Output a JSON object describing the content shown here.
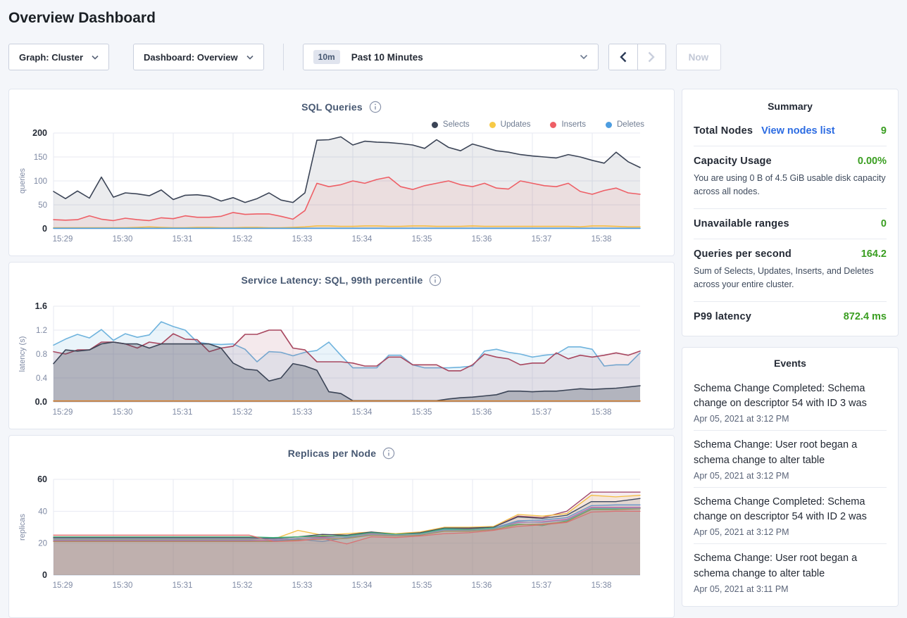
{
  "page": {
    "title": "Overview Dashboard"
  },
  "toolbar": {
    "graph_dropdown": {
      "label": "Graph: Cluster"
    },
    "dashboard_dropdown": {
      "label": "Dashboard: Overview"
    },
    "time_selector": {
      "badge": "10m",
      "label": "Past 10 Minutes"
    },
    "now_label": "Now"
  },
  "summary": {
    "title": "Summary",
    "rows": [
      {
        "label": "Total Nodes",
        "link": "View nodes list",
        "value": "9"
      },
      {
        "label": "Capacity Usage",
        "value": "0.00%",
        "description": "You are using 0 B of 4.5 GiB usable disk capacity across all nodes."
      },
      {
        "label": "Unavailable ranges",
        "value": "0"
      },
      {
        "label": "Queries per second",
        "value": "164.2",
        "description": "Sum of Selects, Updates, Inserts, and Deletes across your entire cluster."
      },
      {
        "label": "P99 latency",
        "value": "872.4 ms"
      }
    ]
  },
  "events": {
    "title": "Events",
    "items": [
      {
        "text": "Schema Change Completed: Schema change on descriptor 54 with ID 3 was",
        "timestamp": "Apr 05, 2021 at 3:12 PM"
      },
      {
        "text": "Schema Change: User root began a schema change to alter table",
        "timestamp": "Apr 05, 2021 at 3:12 PM"
      },
      {
        "text": "Schema Change Completed: Schema change on descriptor 54 with ID 2 was",
        "timestamp": "Apr 05, 2021 at 3:12 PM"
      },
      {
        "text": "Schema Change: User root began a schema change to alter table",
        "timestamp": "Apr 05, 2021 at 3:11 PM"
      }
    ]
  },
  "colors": {
    "value_green": "#3a9e21",
    "link_blue": "#2b6be2",
    "selects_navy": "#3b4456",
    "updates_yellow": "#f7ca46",
    "inserts_red": "#ee5f66",
    "deletes_blue": "#4d9de0"
  },
  "chart_data": [
    {
      "id": "sql-queries",
      "type": "area",
      "title": "SQL Queries",
      "ylabel": "queries",
      "ylim": [
        0,
        200
      ],
      "yticks": [
        0,
        50,
        100,
        150,
        200
      ],
      "ytick_labels": [
        "0",
        "50",
        "100",
        "150",
        "200"
      ],
      "xticks": [
        "15:29",
        "15:30",
        "15:31",
        "15:32",
        "15:33",
        "15:34",
        "15:35",
        "15:36",
        "15:37",
        "15:38"
      ],
      "x_range_minutes": 9.8,
      "grid": true,
      "legend": true,
      "legend_position": "top-right",
      "stroke_width": 1.6,
      "series": [
        {
          "name": "Selects",
          "color": "#3b4456",
          "fill": "rgba(59,68,86,0.10)",
          "values": [
            78,
            63,
            79,
            64,
            108,
            66,
            75,
            73,
            69,
            81,
            61,
            70,
            71,
            68,
            58,
            65,
            55,
            63,
            75,
            60,
            55,
            75,
            185,
            186,
            192,
            175,
            183,
            181,
            180,
            178,
            175,
            168,
            186,
            170,
            163,
            177,
            170,
            163,
            160,
            155,
            152,
            150,
            148,
            155,
            150,
            143,
            137,
            160,
            140,
            128
          ]
        },
        {
          "name": "Updates",
          "color": "#f7ca46",
          "fill": "rgba(247,202,70,0.12)",
          "values": [
            2,
            2,
            2,
            2,
            2,
            2,
            2,
            3,
            4,
            3,
            2,
            2,
            3,
            3,
            2,
            2,
            3,
            3,
            2,
            2,
            3,
            4,
            6,
            6,
            5,
            5,
            6,
            6,
            5,
            5,
            6,
            6,
            5,
            5,
            5,
            6,
            5,
            5,
            5,
            5,
            5,
            5,
            5,
            5,
            4,
            6,
            6,
            5,
            4,
            4
          ]
        },
        {
          "name": "Inserts",
          "color": "#ee5f66",
          "fill": "rgba(238,95,102,0.10)",
          "values": [
            19,
            18,
            19,
            27,
            20,
            17,
            22,
            19,
            17,
            23,
            21,
            27,
            24,
            24,
            26,
            34,
            30,
            31,
            31,
            26,
            20,
            38,
            95,
            88,
            92,
            100,
            95,
            103,
            108,
            88,
            82,
            90,
            95,
            100,
            92,
            88,
            95,
            85,
            83,
            100,
            95,
            90,
            88,
            95,
            78,
            72,
            80,
            85,
            75,
            72
          ]
        },
        {
          "name": "Deletes",
          "color": "#4d9de0",
          "fill": "rgba(77,157,224,0.12)",
          "values": [
            1,
            1
          ]
        }
      ]
    },
    {
      "id": "service-latency",
      "type": "area",
      "title": "Service Latency: SQL, 99th percentile",
      "ylabel": "latency (s)",
      "ylim": [
        0,
        1.6
      ],
      "yticks": [
        0,
        0.4,
        0.8,
        1.2,
        1.6
      ],
      "ytick_labels": [
        "0.0",
        "0.4",
        "0.8",
        "1.2",
        "1.6"
      ],
      "xticks": [
        "15:29",
        "15:30",
        "15:31",
        "15:32",
        "15:33",
        "15:34",
        "15:35",
        "15:36",
        "15:37",
        "15:38"
      ],
      "x_range_minutes": 9.8,
      "grid": true,
      "legend": false,
      "stroke_width": 1.6,
      "series": [
        {
          "color": "#6fb3dd",
          "fill": "rgba(111,179,221,0.15)",
          "values": [
            0.95,
            1.05,
            1.13,
            1.07,
            1.21,
            1.03,
            1.14,
            1.08,
            1.12,
            1.34,
            1.26,
            1.2,
            1.0,
            0.97,
            0.96,
            0.97,
            0.88,
            0.67,
            0.84,
            0.83,
            0.77,
            0.83,
            0.86,
            1.0,
            0.78,
            0.57,
            0.57,
            0.57,
            0.78,
            0.78,
            0.62,
            0.57,
            0.57,
            0.57,
            0.58,
            0.6,
            0.85,
            0.88,
            0.83,
            0.8,
            0.75,
            0.78,
            0.8,
            0.92,
            0.92,
            0.88,
            0.6,
            0.62,
            0.62,
            0.82
          ]
        },
        {
          "color": "#a8475f",
          "fill": "rgba(168,71,95,0.12)",
          "values": [
            0.84,
            0.8,
            0.87,
            0.87,
            1.0,
            1.0,
            0.97,
            0.9,
            1.0,
            0.97,
            1.14,
            1.05,
            1.04,
            0.84,
            0.9,
            0.93,
            1.13,
            1.13,
            1.2,
            1.2,
            0.9,
            0.87,
            0.67,
            0.67,
            0.67,
            0.65,
            0.6,
            0.6,
            0.75,
            0.75,
            0.62,
            0.62,
            0.62,
            0.52,
            0.52,
            0.62,
            0.8,
            0.75,
            0.72,
            0.62,
            0.65,
            0.65,
            0.82,
            0.72,
            0.78,
            0.75,
            0.78,
            0.82,
            0.78,
            0.85
          ]
        },
        {
          "color": "#3b4456",
          "fill": "rgba(59,68,86,0.28)",
          "values": [
            0.64,
            0.87,
            0.85,
            0.87,
            0.97,
            1.0,
            0.97,
            0.97,
            0.9,
            0.97,
            0.97,
            0.97,
            0.97,
            0.97,
            0.9,
            0.65,
            0.55,
            0.53,
            0.35,
            0.4,
            0.64,
            0.6,
            0.53,
            0.17,
            0.14,
            0.02,
            0.02,
            0.02,
            0.02,
            0.02,
            0.02,
            0.02,
            0.02,
            0.05,
            0.07,
            0.08,
            0.1,
            0.12,
            0.18,
            0.18,
            0.17,
            0.18,
            0.18,
            0.2,
            0.22,
            0.21,
            0.22,
            0.23,
            0.25,
            0.27
          ]
        },
        {
          "color": "#d9822b",
          "fill": "none",
          "values": [
            0.015,
            0.015
          ]
        }
      ]
    },
    {
      "id": "replicas-per-node",
      "type": "area",
      "title": "Replicas per Node",
      "ylabel": "replicas",
      "ylim": [
        0,
        60
      ],
      "yticks": [
        0,
        20,
        40,
        60
      ],
      "ytick_labels": [
        "0",
        "20",
        "40",
        "60"
      ],
      "xticks": [
        "15:29",
        "15:30",
        "15:31",
        "15:32",
        "15:33",
        "15:34",
        "15:35",
        "15:36",
        "15:37",
        "15:38"
      ],
      "x_range_minutes": 9.8,
      "grid": true,
      "legend": false,
      "stroke_width": 1.3,
      "series": [
        {
          "color": "#9b3e63",
          "fill": "rgba(155,62,99,0.10)",
          "values": [
            23,
            23,
            23,
            23,
            23,
            23,
            23,
            23,
            23,
            23,
            24,
            24,
            25,
            26,
            25.5,
            26,
            29,
            29,
            30,
            37,
            36,
            40,
            52,
            52,
            52
          ]
        },
        {
          "color": "#f2bd42",
          "fill": "rgba(242,189,66,0.10)",
          "values": [
            22.5,
            22.5,
            22.5,
            22.5,
            22.5,
            22.5,
            22.5,
            22.5,
            22.5,
            22.5,
            28,
            25,
            26,
            27,
            26,
            27,
            30,
            30,
            30.5,
            38,
            37,
            38.5,
            50,
            49,
            50
          ]
        },
        {
          "color": "#3e4a63",
          "fill": "rgba(62,74,99,0.10)",
          "values": [
            23.5,
            23.5,
            23.5,
            23.5,
            23.5,
            23.5,
            23.5,
            23.5,
            23.5,
            23,
            24,
            25.5,
            25,
            27,
            25.5,
            26.5,
            29.5,
            29.5,
            30,
            36.5,
            35.5,
            37.5,
            46,
            46,
            48
          ]
        },
        {
          "color": "#6592c7",
          "fill": "rgba(101,146,199,0.10)",
          "values": [
            22,
            22,
            22,
            22,
            22,
            22,
            22,
            22,
            22,
            21.5,
            22.5,
            21,
            23.5,
            25.5,
            25,
            25.5,
            28.5,
            28.5,
            29.5,
            34,
            34.5,
            36,
            43.5,
            44,
            44
          ]
        },
        {
          "color": "#d064a6",
          "fill": "rgba(208,100,166,0.10)",
          "values": [
            21.5,
            21.5,
            21.5,
            21.5,
            21.5,
            21.5,
            21.5,
            21.5,
            21.5,
            22,
            23,
            23.5,
            24,
            26,
            25,
            26,
            28,
            27.5,
            29,
            33,
            33.5,
            35,
            42.5,
            42.5,
            42.5
          ]
        },
        {
          "color": "#41b97f",
          "fill": "rgba(65,185,127,0.10)",
          "values": [
            24,
            24,
            24,
            24,
            24,
            24,
            24,
            24,
            24,
            23.5,
            24,
            24.5,
            24.5,
            26.5,
            25.5,
            26,
            29,
            28.5,
            29.5,
            32,
            31,
            34,
            41.5,
            41.5,
            42
          ]
        },
        {
          "color": "#a98e53",
          "fill": "rgba(169,142,83,0.10)",
          "values": [
            21,
            21,
            21,
            21,
            21,
            21,
            21,
            21,
            21,
            21,
            22,
            22.5,
            23,
            25,
            24.5,
            25,
            27.5,
            27.5,
            28.5,
            31.5,
            32,
            33.5,
            41,
            41,
            41.5
          ]
        },
        {
          "color": "#e06c6c",
          "fill": "rgba(224,108,108,0.10)",
          "values": [
            25,
            25,
            25,
            25,
            25,
            25,
            25,
            25,
            25,
            21,
            21.5,
            23,
            19.5,
            24,
            23.5,
            24.5,
            26,
            26.5,
            28,
            30.5,
            31.5,
            33,
            39.5,
            40,
            40
          ]
        },
        {
          "color": "#8f9bb3",
          "fill": "rgba(143,155,179,0.10)",
          "values": [
            22.8,
            22.8,
            22.8,
            22.8,
            22.8,
            22.8,
            22.8,
            22.8,
            22.8,
            22.5,
            23,
            23,
            24,
            25.5,
            25,
            25.5,
            28,
            28,
            29,
            33.5,
            33,
            34.5,
            42,
            42,
            42
          ]
        }
      ]
    }
  ]
}
